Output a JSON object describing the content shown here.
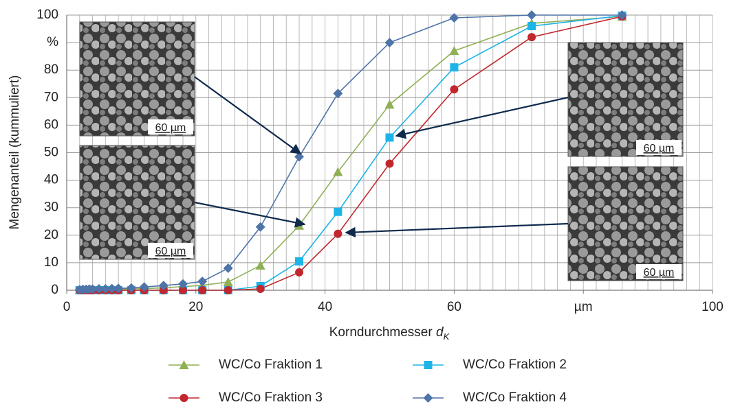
{
  "chart_data": {
    "type": "line",
    "ylabel": "Mengenanteil (kummuliert)",
    "xlabel": "Korndurchmesser",
    "xlabel_symbol": "d",
    "xlabel_subscript": "K",
    "xlim": [
      0,
      100
    ],
    "ylim": [
      0,
      100
    ],
    "xticks": [
      0,
      20,
      40,
      60,
      {
        "value": 80,
        "label": "µm"
      },
      100
    ],
    "yticks": [
      0,
      10,
      20,
      30,
      40,
      50,
      60,
      70,
      80,
      {
        "value": 90,
        "label": "%"
      },
      100
    ],
    "grid": true,
    "x_minor_grid_step": 2,
    "legend": "bottom",
    "x": [
      2,
      2.5,
      3,
      3.5,
      4,
      5,
      6,
      7,
      8,
      10,
      12,
      15,
      18,
      21,
      25,
      30,
      36,
      42,
      50,
      60,
      72,
      86
    ],
    "series": [
      {
        "name": "WC/Co Fraktion 1",
        "color": "#8fb054",
        "marker": "triangle",
        "values": [
          0,
          0,
          0.1,
          0.1,
          0.2,
          0.2,
          0.3,
          0.3,
          0.4,
          0.5,
          0.6,
          0.9,
          1.3,
          1.8,
          3,
          9,
          23.5,
          43,
          67.5,
          87,
          97,
          99.5
        ]
      },
      {
        "name": "WC/Co Fraktion 2",
        "color": "#1db4e8",
        "marker": "square",
        "values": [
          0,
          0,
          0,
          0,
          0,
          0,
          0,
          0,
          0,
          0,
          0,
          0,
          0,
          0,
          0,
          1.5,
          10.5,
          28.5,
          55.5,
          81,
          96,
          99.8
        ]
      },
      {
        "name": "WC/Co Fraktion 3",
        "color": "#c1272d",
        "marker": "circle",
        "values": [
          0,
          0,
          0,
          0,
          0,
          0,
          0,
          0,
          0,
          0,
          0,
          0,
          0,
          0,
          0,
          0.5,
          6.5,
          20.5,
          46,
          73,
          92,
          99.5
        ]
      },
      {
        "name": "WC/Co Fraktion 4",
        "color": "#4f74a8",
        "marker": "diamond",
        "values": [
          0.2,
          0.3,
          0.3,
          0.4,
          0.4,
          0.5,
          0.5,
          0.6,
          0.7,
          0.8,
          1.2,
          1.7,
          2.3,
          3.2,
          8,
          23,
          48.5,
          71.5,
          90,
          99,
          100,
          100
        ]
      }
    ],
    "images": [
      {
        "scale": "60 µm"
      },
      {
        "scale": "60 µm"
      },
      {
        "scale": "60 µm"
      },
      {
        "scale": "60 µm"
      }
    ]
  }
}
